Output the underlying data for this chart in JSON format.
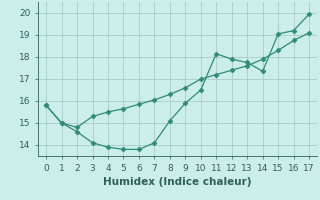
{
  "xlabel": "Humidex (Indice chaleur)",
  "x": [
    0,
    1,
    2,
    3,
    4,
    5,
    6,
    7,
    8,
    9,
    10,
    11,
    12,
    13,
    14,
    15,
    16,
    17
  ],
  "line1": [
    15.8,
    15.0,
    14.6,
    14.1,
    13.9,
    13.8,
    13.8,
    14.1,
    15.1,
    15.9,
    16.5,
    18.15,
    17.9,
    17.75,
    17.35,
    19.05,
    19.2,
    19.95
  ],
  "line2": [
    15.8,
    15.0,
    14.8,
    15.3,
    15.5,
    15.65,
    15.85,
    16.05,
    16.3,
    16.6,
    17.0,
    17.2,
    17.4,
    17.6,
    17.9,
    18.3,
    18.75,
    19.1
  ],
  "line_color": "#2e8b75",
  "bg_color": "#cceee8",
  "grid_color": "#aaccc6",
  "tick_color": "#2e6055",
  "ylim": [
    13.5,
    20.5
  ],
  "xlim": [
    -0.5,
    17.5
  ],
  "yticks": [
    14,
    15,
    16,
    17,
    18,
    19,
    20
  ],
  "xticks": [
    0,
    1,
    2,
    3,
    4,
    5,
    6,
    7,
    8,
    9,
    10,
    11,
    12,
    13,
    14,
    15,
    16,
    17
  ],
  "tick_fontsize": 6.5,
  "xlabel_fontsize": 7.5
}
